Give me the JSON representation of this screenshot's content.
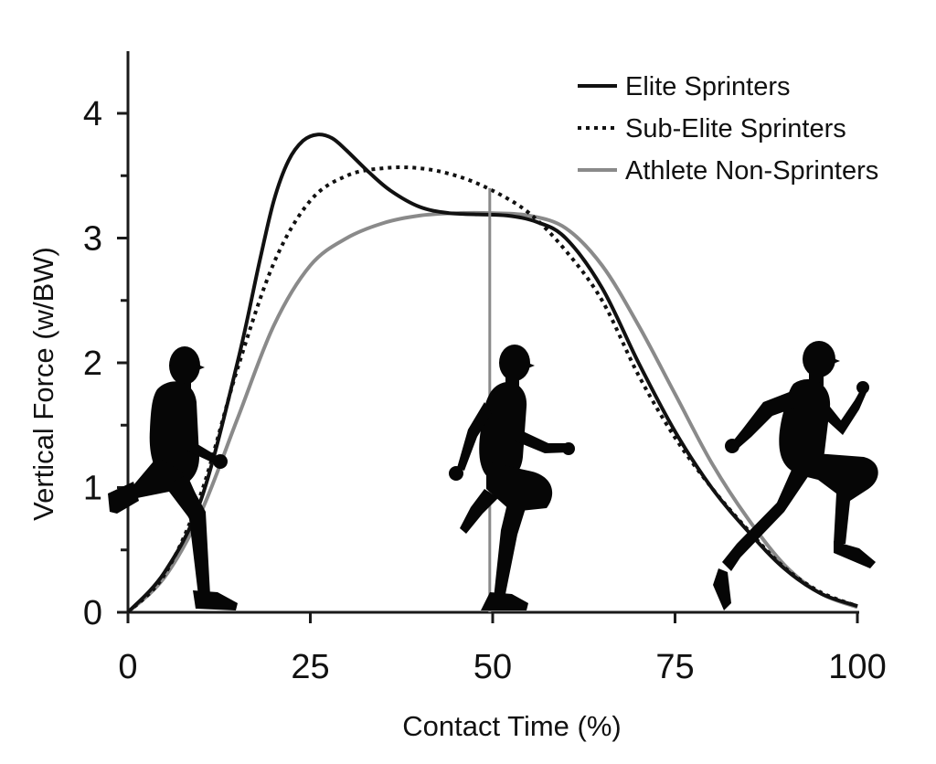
{
  "chart_data": {
    "type": "line",
    "xlabel": "Contact Time (%)",
    "ylabel": "Vertical Force (w/BW)",
    "xlim": [
      0,
      100
    ],
    "ylim": [
      0,
      4.4
    ],
    "xticks": [
      0,
      25,
      50,
      75,
      100
    ],
    "yticks": [
      0,
      1,
      2,
      3,
      4
    ],
    "legend_position": "top-right",
    "grid": false,
    "series": [
      {
        "name": "Elite Sprinters",
        "style": "solid",
        "color": "#111111",
        "x": [
          0,
          5,
          10,
          15,
          18,
          20,
          22,
          24,
          26,
          28,
          30,
          33,
          36,
          40,
          44,
          48,
          52,
          56,
          60,
          65,
          70,
          75,
          80,
          85,
          90,
          95,
          100
        ],
        "y": [
          0,
          0.32,
          0.9,
          2.0,
          2.8,
          3.3,
          3.62,
          3.78,
          3.83,
          3.8,
          3.7,
          3.53,
          3.38,
          3.25,
          3.2,
          3.19,
          3.18,
          3.13,
          3.0,
          2.6,
          2.0,
          1.45,
          1.0,
          0.65,
          0.35,
          0.15,
          0.05
        ]
      },
      {
        "name": "Sub-Elite Sprinters",
        "style": "dotted",
        "color": "#111111",
        "x": [
          0,
          5,
          10,
          15,
          20,
          25,
          30,
          35,
          40,
          45,
          50,
          55,
          60,
          65,
          70,
          75,
          80,
          85,
          90,
          95,
          100
        ],
        "y": [
          0,
          0.3,
          0.95,
          1.95,
          2.8,
          3.3,
          3.5,
          3.56,
          3.56,
          3.5,
          3.38,
          3.2,
          2.9,
          2.5,
          1.9,
          1.4,
          1.0,
          0.66,
          0.36,
          0.16,
          0.05
        ]
      },
      {
        "name": "Athlete Non-Sprinters",
        "style": "solid",
        "color": "#8a8a8a",
        "x": [
          0,
          5,
          10,
          15,
          20,
          25,
          30,
          35,
          40,
          45,
          50,
          55,
          60,
          65,
          70,
          75,
          80,
          85,
          90,
          95,
          100
        ],
        "y": [
          0,
          0.28,
          0.8,
          1.55,
          2.3,
          2.78,
          3.0,
          3.12,
          3.18,
          3.2,
          3.2,
          3.18,
          3.08,
          2.78,
          2.3,
          1.75,
          1.2,
          0.75,
          0.38,
          0.15,
          0.04
        ]
      }
    ],
    "annotations": [
      {
        "type": "vertical-line",
        "x": 49.6,
        "y_from": 0,
        "y_to": 3.4,
        "color": "#8a8a8a"
      }
    ],
    "illustrations": [
      {
        "name": "runner-early-stance-icon",
        "phase": "early stance"
      },
      {
        "name": "runner-mid-stance-icon",
        "phase": "mid stance"
      },
      {
        "name": "runner-late-stance-icon",
        "phase": "toe off"
      }
    ]
  }
}
